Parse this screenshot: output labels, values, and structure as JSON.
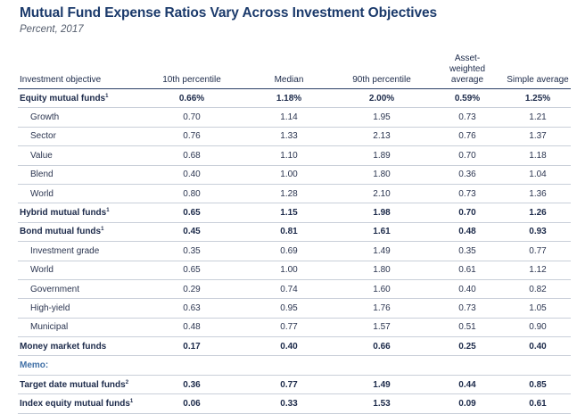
{
  "title": "Mutual Fund Expense Ratios Vary Across Investment Objectives",
  "subtitle": "Percent, 2017",
  "columns": [
    "Investment objective",
    "10th percentile",
    "Median",
    "90th percentile",
    "Asset-weighted average",
    "Simple average"
  ],
  "rows": [
    {
      "label": "Equity mutual funds",
      "sup": "1",
      "style": "bold",
      "values": [
        "0.66%",
        "1.18%",
        "2.00%",
        "0.59%",
        "1.25%"
      ]
    },
    {
      "label": "Growth",
      "sup": "",
      "style": "indent",
      "values": [
        "0.70",
        "1.14",
        "1.95",
        "0.73",
        "1.21"
      ]
    },
    {
      "label": "Sector",
      "sup": "",
      "style": "indent",
      "values": [
        "0.76",
        "1.33",
        "2.13",
        "0.76",
        "1.37"
      ]
    },
    {
      "label": "Value",
      "sup": "",
      "style": "indent",
      "values": [
        "0.68",
        "1.10",
        "1.89",
        "0.70",
        "1.18"
      ]
    },
    {
      "label": "Blend",
      "sup": "",
      "style": "indent",
      "values": [
        "0.40",
        "1.00",
        "1.80",
        "0.36",
        "1.04"
      ]
    },
    {
      "label": "World",
      "sup": "",
      "style": "indent",
      "values": [
        "0.80",
        "1.28",
        "2.10",
        "0.73",
        "1.36"
      ]
    },
    {
      "label": "Hybrid mutual funds",
      "sup": "1",
      "style": "bold",
      "values": [
        "0.65",
        "1.15",
        "1.98",
        "0.70",
        "1.26"
      ]
    },
    {
      "label": "Bond mutual funds",
      "sup": "1",
      "style": "bold",
      "values": [
        "0.45",
        "0.81",
        "1.61",
        "0.48",
        "0.93"
      ]
    },
    {
      "label": "Investment grade",
      "sup": "",
      "style": "indent",
      "values": [
        "0.35",
        "0.69",
        "1.49",
        "0.35",
        "0.77"
      ]
    },
    {
      "label": "World",
      "sup": "",
      "style": "indent",
      "values": [
        "0.65",
        "1.00",
        "1.80",
        "0.61",
        "1.12"
      ]
    },
    {
      "label": "Government",
      "sup": "",
      "style": "indent",
      "values": [
        "0.29",
        "0.74",
        "1.60",
        "0.40",
        "0.82"
      ]
    },
    {
      "label": "High-yield",
      "sup": "",
      "style": "indent",
      "values": [
        "0.63",
        "0.95",
        "1.76",
        "0.73",
        "1.05"
      ]
    },
    {
      "label": "Municipal",
      "sup": "",
      "style": "indent",
      "values": [
        "0.48",
        "0.77",
        "1.57",
        "0.51",
        "0.90"
      ]
    },
    {
      "label": "Money market funds",
      "sup": "",
      "style": "bold",
      "values": [
        "0.17",
        "0.40",
        "0.66",
        "0.25",
        "0.40"
      ]
    },
    {
      "label": "Memo:",
      "sup": "",
      "style": "memo",
      "values": [
        "",
        "",
        "",
        "",
        ""
      ]
    },
    {
      "label": "Target date mutual funds",
      "sup": "2",
      "style": "bold",
      "values": [
        "0.36",
        "0.77",
        "1.49",
        "0.44",
        "0.85"
      ]
    },
    {
      "label": "Index equity mutual funds",
      "sup": "1",
      "style": "bold",
      "values": [
        "0.06",
        "0.33",
        "1.53",
        "0.09",
        "0.61"
      ]
    }
  ]
}
